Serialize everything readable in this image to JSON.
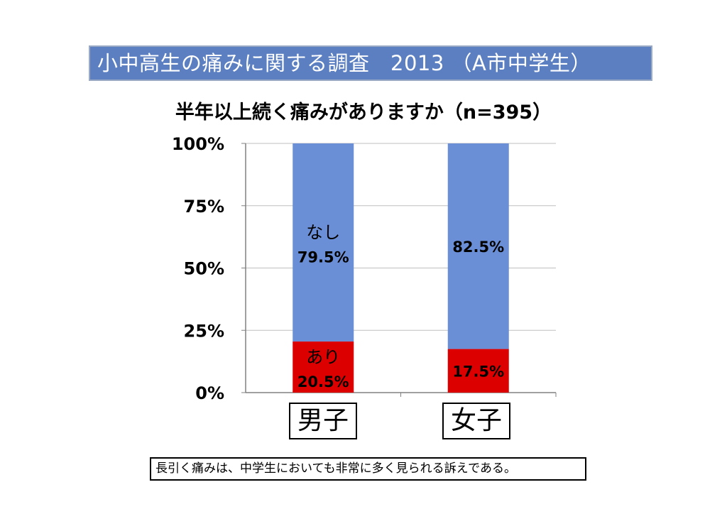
{
  "title": "小中高生の痛みに関する調査　2013 （A市中学生）",
  "subtitle": "半年以上続く痛みがありますか（n=395）",
  "chart_data": {
    "type": "bar",
    "stacked": true,
    "categories": [
      "男子",
      "女子"
    ],
    "series": [
      {
        "name": "あり",
        "values": [
          20.5,
          17.5
        ],
        "color": "#dd0000",
        "labels": [
          "20.5%",
          "17.5%"
        ]
      },
      {
        "name": "なし",
        "values": [
          79.5,
          82.5
        ],
        "color": "#6b8fd6",
        "labels": [
          "79.5%",
          "82.5%"
        ]
      }
    ],
    "series_name_labels": {
      "あり": "あり",
      "なし": "なし"
    },
    "yticks": [
      "0%",
      "25%",
      "50%",
      "75%",
      "100%"
    ],
    "ylim": [
      0,
      100
    ],
    "grid": true
  },
  "note": "長引く痛みは、中学生においても非常に多く見られる訴えである。"
}
